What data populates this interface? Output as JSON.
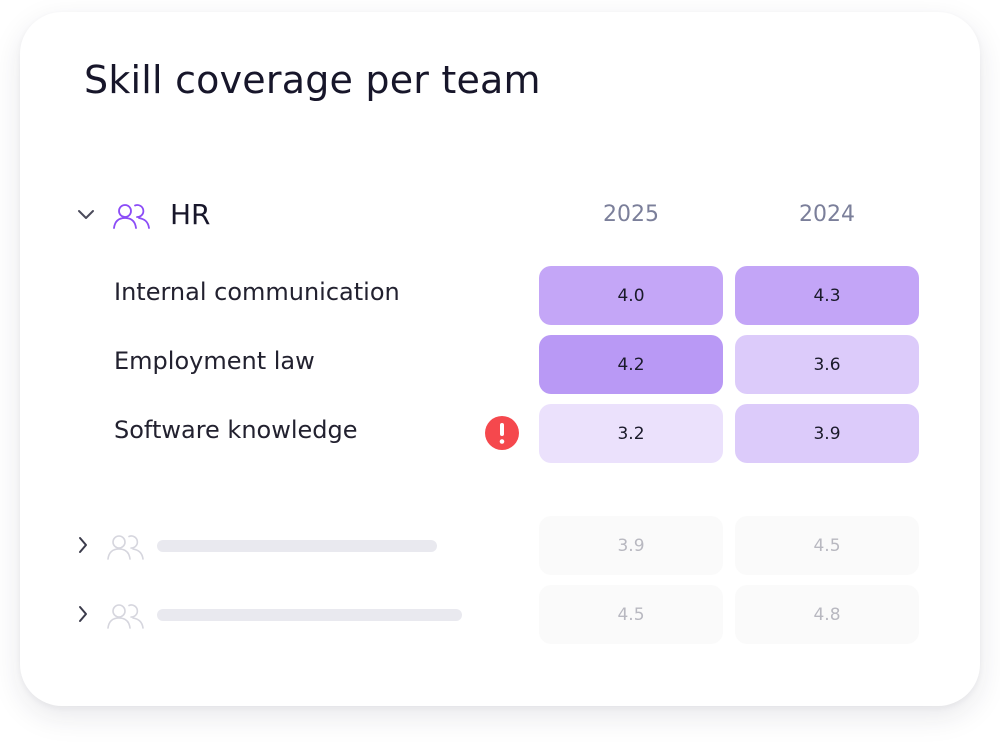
{
  "title": "Skill coverage per team",
  "columns": [
    "2025",
    "2024"
  ],
  "expanded_team": {
    "name": "HR",
    "accent": "#8b4cf7",
    "skills": [
      {
        "name": "Internal communication",
        "values": [
          "4.0",
          "4.3"
        ],
        "colors": [
          "#c4a6f7",
          "#c3a5f7"
        ],
        "warning": false
      },
      {
        "name": "Employment law",
        "values": [
          "4.2",
          "3.6"
        ],
        "colors": [
          "#b999f5",
          "#dccbfa"
        ],
        "warning": false
      },
      {
        "name": "Software knowledge",
        "values": [
          "3.2",
          "3.9"
        ],
        "colors": [
          "#ebe1fc",
          "#dccbfa"
        ],
        "warning": true
      }
    ]
  },
  "collapsed_teams": [
    {
      "values": [
        "3.9",
        "4.5"
      ]
    },
    {
      "values": [
        "4.5",
        "4.8"
      ]
    }
  ],
  "warning_color": "#f5484d"
}
